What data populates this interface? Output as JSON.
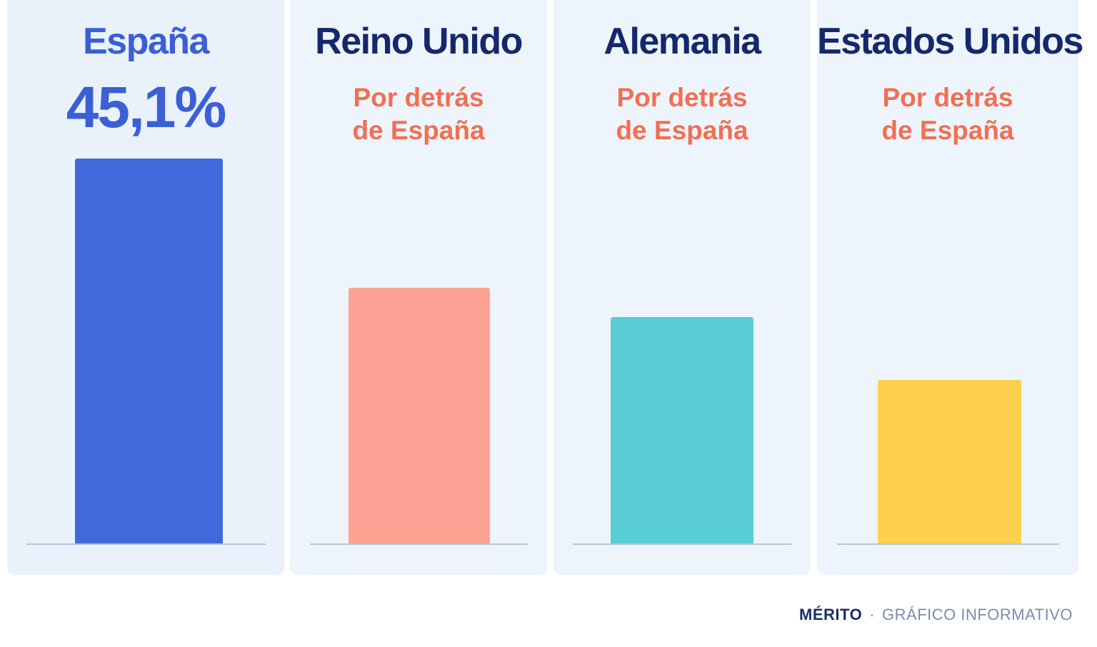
{
  "chart_data": {
    "type": "bar",
    "categories": [
      "España",
      "Reino Unido",
      "Alemania",
      "Estados Unidos"
    ],
    "values": [
      45.1,
      30.0,
      26.6,
      19.2
    ],
    "value_labels": [
      "45,1%",
      "",
      "",
      ""
    ],
    "sub_labels": [
      null,
      [
        "Por detrás",
        "de España"
      ],
      [
        "Por detrás",
        "de España"
      ],
      [
        "Por detrás",
        "de España"
      ]
    ],
    "colors": [
      "#4169dc",
      "#fda294",
      "#58cdd3",
      "#fdd04e"
    ],
    "ylim": [
      0,
      45.1
    ],
    "title": "",
    "xlabel": "",
    "ylabel": "",
    "grid": false
  },
  "footer": {
    "brand": "MÉRITO",
    "separator": "·",
    "text": "GRÁFICO INFORMATIVO"
  }
}
